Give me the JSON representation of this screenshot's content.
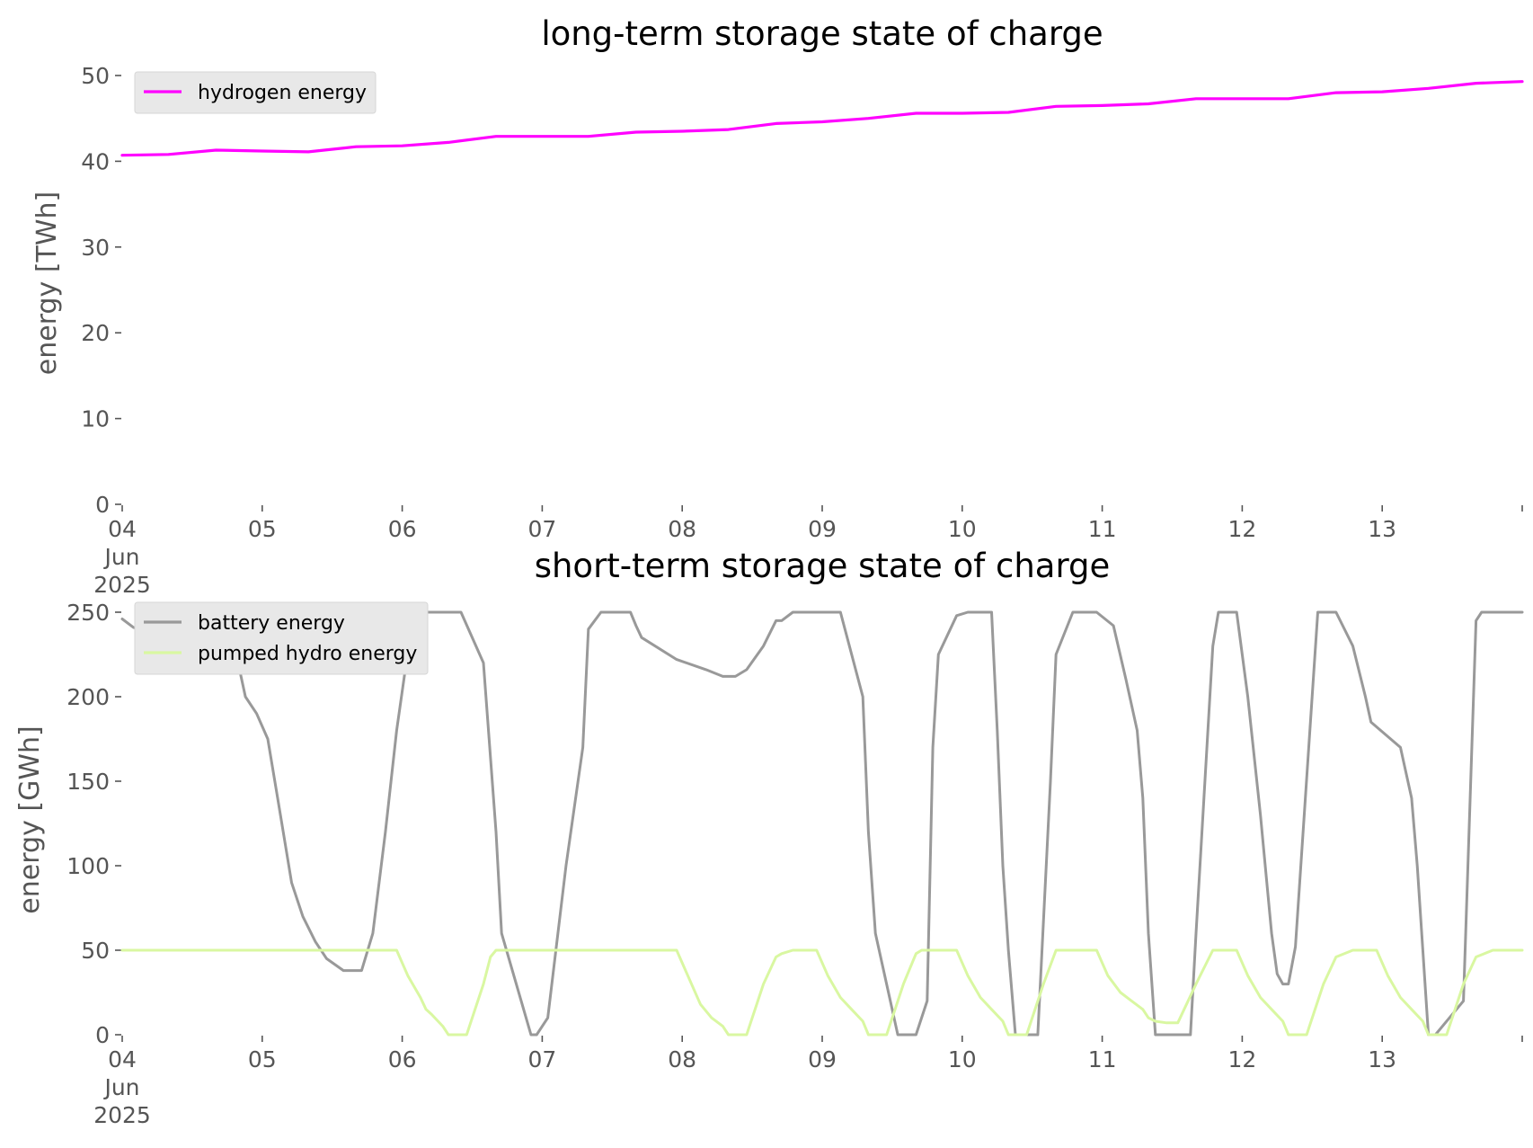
{
  "chart_data": [
    {
      "type": "line",
      "title": "long-term storage state of charge",
      "ylabel": "energy [TWh]",
      "xlabel": "",
      "ylim": [
        0,
        50
      ],
      "yticks": [
        "0",
        "10",
        "20",
        "30",
        "40",
        "50"
      ],
      "xticks": [
        {
          "day": 0,
          "lines": [
            "04",
            "Jun",
            "2025"
          ]
        },
        {
          "day": 1,
          "lines": [
            "05"
          ]
        },
        {
          "day": 2,
          "lines": [
            "06"
          ]
        },
        {
          "day": 3,
          "lines": [
            "07"
          ]
        },
        {
          "day": 4,
          "lines": [
            "08"
          ]
        },
        {
          "day": 5,
          "lines": [
            "09"
          ]
        },
        {
          "day": 6,
          "lines": [
            "10"
          ]
        },
        {
          "day": 7,
          "lines": [
            "11"
          ]
        },
        {
          "day": 8,
          "lines": [
            "12"
          ]
        },
        {
          "day": 9,
          "lines": [
            "13"
          ]
        },
        {
          "day": 10,
          "lines": [
            ""
          ]
        }
      ],
      "xrange_days": [
        0,
        10
      ],
      "grid": false,
      "legend_position": "top-left",
      "series": [
        {
          "name": "hydrogen energy",
          "color": "#ff00ff",
          "x": [
            0,
            0.33,
            0.67,
            1.0,
            1.33,
            1.67,
            2.0,
            2.33,
            2.67,
            3.0,
            3.33,
            3.67,
            4.0,
            4.33,
            4.67,
            5.0,
            5.33,
            5.67,
            6.0,
            6.33,
            6.67,
            7.0,
            7.33,
            7.67,
            8.0,
            8.33,
            8.67,
            9.0,
            9.33,
            9.67,
            10.0
          ],
          "y": [
            40.7,
            40.8,
            41.3,
            41.2,
            41.1,
            41.7,
            41.8,
            42.2,
            42.9,
            42.9,
            42.9,
            43.4,
            43.5,
            43.7,
            44.4,
            44.6,
            45.0,
            45.6,
            45.6,
            45.7,
            46.4,
            46.5,
            46.7,
            47.3,
            47.3,
            47.3,
            48.0,
            48.1,
            48.5,
            49.1,
            49.3
          ]
        }
      ]
    },
    {
      "type": "line",
      "title": "short-term storage state of charge",
      "ylabel": "energy [GWh]",
      "xlabel": "",
      "ylim": [
        0,
        250
      ],
      "yticks": [
        "0",
        "50",
        "100",
        "150",
        "200",
        "250"
      ],
      "xticks": [
        {
          "day": 0,
          "lines": [
            "04",
            "Jun",
            "2025"
          ]
        },
        {
          "day": 1,
          "lines": [
            "05"
          ]
        },
        {
          "day": 2,
          "lines": [
            "06"
          ]
        },
        {
          "day": 3,
          "lines": [
            "07"
          ]
        },
        {
          "day": 4,
          "lines": [
            "08"
          ]
        },
        {
          "day": 5,
          "lines": [
            "09"
          ]
        },
        {
          "day": 6,
          "lines": [
            "10"
          ]
        },
        {
          "day": 7,
          "lines": [
            "11"
          ]
        },
        {
          "day": 8,
          "lines": [
            "12"
          ]
        },
        {
          "day": 9,
          "lines": [
            "13"
          ]
        },
        {
          "day": 10,
          "lines": [
            ""
          ]
        }
      ],
      "xrange_days": [
        0,
        10
      ],
      "grid": false,
      "legend_position": "top-left",
      "series": [
        {
          "name": "battery energy",
          "color": "#999999",
          "x": [
            0,
            0.08,
            0.17,
            0.29,
            0.42,
            0.5,
            0.63,
            0.75,
            0.88,
            0.96,
            1.04,
            1.13,
            1.21,
            1.29,
            1.38,
            1.46,
            1.58,
            1.71,
            1.79,
            1.88,
            1.96,
            2.08,
            2.25,
            2.33,
            2.42,
            2.58,
            2.67,
            2.71,
            2.92,
            2.96,
            3.04,
            3.17,
            3.29,
            3.33,
            3.42,
            3.46,
            3.54,
            3.58,
            3.63,
            3.67,
            3.71,
            3.96,
            4.17,
            4.29,
            4.33,
            4.38,
            4.46,
            4.58,
            4.67,
            4.71,
            4.79,
            4.88,
            4.96,
            5.13,
            5.29,
            5.33,
            5.38,
            5.54,
            5.63,
            5.67,
            5.75,
            5.79,
            5.83,
            5.96,
            6.04,
            6.08,
            6.13,
            6.21,
            6.25,
            6.29,
            6.33,
            6.38,
            6.54,
            6.63,
            6.67,
            6.79,
            6.83,
            6.96,
            7.08,
            7.17,
            7.25,
            7.29,
            7.33,
            7.38,
            7.46,
            7.63,
            7.67,
            7.79,
            7.83,
            7.88,
            7.92,
            7.96,
            8.04,
            8.13,
            8.21,
            8.25,
            8.29,
            8.33,
            8.38,
            8.54,
            8.63,
            8.67,
            8.79,
            8.88,
            8.92,
            9.13,
            9.21,
            9.25,
            9.29,
            9.33,
            9.38,
            9.58,
            9.67,
            9.71,
            9.75,
            9.79,
            10.0
          ],
          "y": [
            246,
            241,
            238,
            237,
            237,
            250,
            250,
            250,
            200,
            190,
            175,
            130,
            90,
            70,
            55,
            45,
            38,
            38,
            60,
            120,
            180,
            250,
            250,
            250,
            250,
            220,
            120,
            60,
            0,
            0,
            10,
            100,
            170,
            240,
            250,
            250,
            250,
            250,
            250,
            242,
            235,
            222,
            216,
            212,
            212,
            212,
            216,
            230,
            245,
            245,
            250,
            250,
            250,
            250,
            200,
            120,
            60,
            0,
            0,
            0,
            20,
            170,
            225,
            248,
            250,
            250,
            250,
            250,
            180,
            100,
            50,
            0,
            0,
            150,
            225,
            250,
            250,
            250,
            242,
            210,
            180,
            140,
            60,
            0,
            0,
            0,
            60,
            230,
            250,
            250,
            250,
            250,
            200,
            130,
            60,
            36,
            30,
            30,
            52,
            250,
            250,
            250,
            230,
            200,
            185,
            170,
            140,
            100,
            50,
            0,
            0,
            20,
            245,
            250,
            250,
            250,
            250
          ]
        },
        {
          "name": "pumped hydro energy",
          "color": "#d9f7a1",
          "x": [
            0,
            1.96,
            2.04,
            2.13,
            2.17,
            2.21,
            2.29,
            2.33,
            2.38,
            2.46,
            2.58,
            2.63,
            2.67,
            3.96,
            4.04,
            4.13,
            4.21,
            4.29,
            4.33,
            4.38,
            4.46,
            4.58,
            4.67,
            4.71,
            4.79,
            4.96,
            5.04,
            5.13,
            5.21,
            5.29,
            5.33,
            5.38,
            5.46,
            5.58,
            5.67,
            5.71,
            5.79,
            5.96,
            6.04,
            6.13,
            6.21,
            6.29,
            6.33,
            6.38,
            6.46,
            6.58,
            6.67,
            6.79,
            6.96,
            7.04,
            7.13,
            7.21,
            7.29,
            7.33,
            7.38,
            7.46,
            7.54,
            7.67,
            7.79,
            7.96,
            8.04,
            8.13,
            8.21,
            8.29,
            8.33,
            8.38,
            8.46,
            8.58,
            8.67,
            8.79,
            8.96,
            9.04,
            9.13,
            9.21,
            9.29,
            9.33,
            9.38,
            9.46,
            9.58,
            9.67,
            9.79,
            10.0
          ],
          "y": [
            50,
            50,
            35,
            22,
            15,
            12,
            5,
            0,
            0,
            0,
            30,
            46,
            50,
            50,
            35,
            18,
            10,
            5,
            0,
            0,
            0,
            30,
            46,
            48,
            50,
            50,
            35,
            22,
            15,
            8,
            0,
            0,
            0,
            30,
            48,
            50,
            50,
            50,
            35,
            22,
            15,
            8,
            0,
            0,
            0,
            30,
            50,
            50,
            50,
            35,
            25,
            20,
            15,
            10,
            8,
            7,
            7,
            30,
            50,
            50,
            35,
            22,
            15,
            8,
            0,
            0,
            0,
            30,
            46,
            50,
            50,
            35,
            22,
            15,
            8,
            0,
            0,
            0,
            30,
            46,
            50,
            50
          ]
        }
      ]
    }
  ]
}
